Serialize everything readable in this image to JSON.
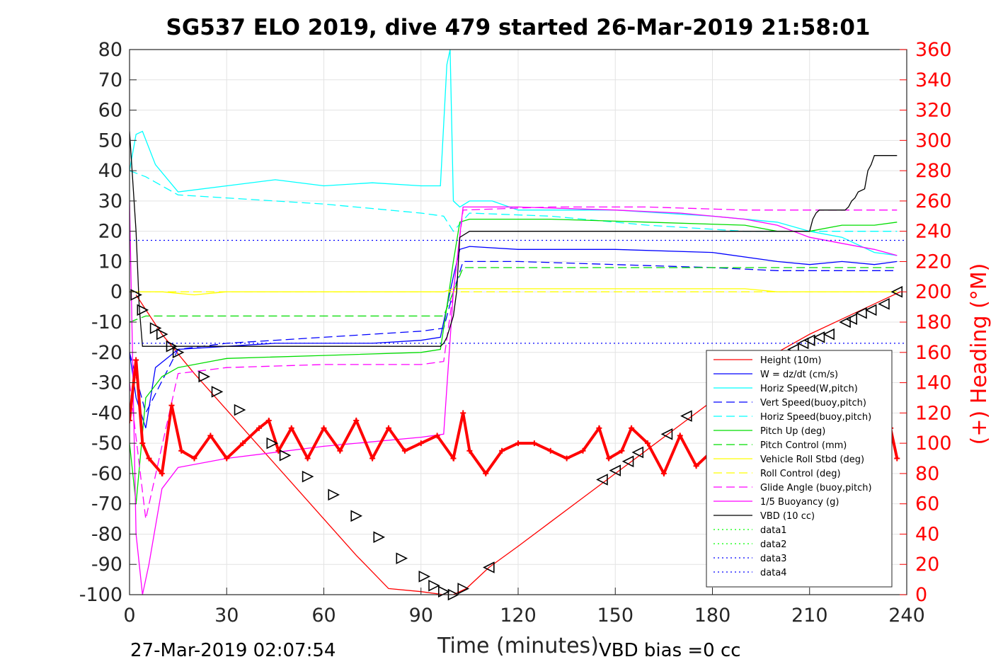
{
  "chart_data": {
    "type": "line",
    "title": "SG537 ELO 2019, dive 479 started 26-Mar-2019 21:58:01",
    "xlabel": "Time (minutes)",
    "ylabel": "",
    "y2label": "(+) Heading (°M)",
    "xlim": [
      0,
      240
    ],
    "ylim": [
      -100,
      80
    ],
    "y2lim": [
      0,
      360
    ],
    "x_ticks": [
      "0",
      "30",
      "60",
      "90",
      "120",
      "150",
      "180",
      "210",
      "240"
    ],
    "y_ticks": [
      "80",
      "70",
      "60",
      "50",
      "40",
      "30",
      "20",
      "10",
      "0",
      "-10",
      "-20",
      "-30",
      "-40",
      "-50",
      "-60",
      "-70",
      "-80",
      "-90",
      "-100"
    ],
    "y2_ticks": [
      "360",
      "340",
      "320",
      "300",
      "280",
      "260",
      "240",
      "220",
      "200",
      "180",
      "160",
      "140",
      "120",
      "100",
      "80",
      "60",
      "40",
      "20",
      "0"
    ],
    "grid": true,
    "legend_position": "lower-right",
    "series": [
      {
        "name": "Height (10m)",
        "color": "#ff0000",
        "style": "solid",
        "x": [
          2,
          10,
          20,
          30,
          40,
          50,
          60,
          70,
          80,
          90,
          97,
          100,
          104,
          111,
          120,
          130,
          140,
          150,
          160,
          170,
          180,
          190,
          200,
          210,
          220,
          230,
          238
        ],
        "y": [
          -1,
          -14,
          -27,
          -39,
          -51,
          -63,
          -75,
          -87,
          -98,
          -99,
          -100,
          -100,
          -98,
          -91,
          -84,
          -76,
          -68,
          -60,
          -52,
          -44,
          -36,
          -28,
          -20,
          -14,
          -9,
          -4,
          0
        ]
      },
      {
        "name": "W = dz/dt (cm/s)",
        "color": "#0000ff",
        "style": "solid",
        "x": [
          0,
          2,
          5,
          8,
          15,
          30,
          45,
          60,
          75,
          90,
          96,
          98,
          100,
          102,
          105,
          120,
          150,
          180,
          200,
          210,
          220,
          230,
          237
        ],
        "y": [
          -20,
          -35,
          -45,
          -25,
          -19,
          -18,
          -17,
          -17,
          -17,
          -16,
          -15,
          -5,
          5,
          14,
          15,
          14,
          14,
          13,
          10,
          9,
          10,
          9,
          10
        ]
      },
      {
        "name": "Horiz Speed(W,pitch)",
        "color": "#00ffff",
        "style": "solid",
        "x": [
          0,
          2,
          4,
          8,
          15,
          30,
          45,
          60,
          75,
          90,
          96,
          98,
          99,
          100,
          102,
          105,
          112,
          120,
          150,
          180,
          200,
          210,
          220,
          230,
          237
        ],
        "y": [
          40,
          52,
          53,
          42,
          33,
          35,
          37,
          35,
          36,
          35,
          35,
          75,
          80,
          30,
          28,
          30,
          30,
          27,
          27,
          25,
          23,
          20,
          18,
          13,
          12
        ]
      },
      {
        "name": "Vert Speed(buoy,pitch)",
        "color": "#0000ff",
        "style": "dashed",
        "x": [
          0,
          5,
          15,
          30,
          60,
          90,
          97,
          100,
          103,
          120,
          150,
          180,
          200,
          220,
          237
        ],
        "y": [
          -20,
          -40,
          -19,
          -17,
          -15,
          -13,
          -12,
          0,
          10,
          10,
          9,
          8,
          7,
          7,
          7
        ]
      },
      {
        "name": "Horiz Speed(buoy,pitch)",
        "color": "#00ffff",
        "style": "dashed",
        "x": [
          0,
          5,
          15,
          30,
          60,
          90,
          97,
          100,
          105,
          130,
          160,
          190,
          210,
          237
        ],
        "y": [
          40,
          38,
          32,
          31,
          29,
          26,
          25,
          20,
          26,
          25,
          22,
          20,
          20,
          20
        ]
      },
      {
        "name": "Pitch Up (deg)",
        "color": "#00dd00",
        "style": "solid",
        "x": [
          0,
          2,
          5,
          10,
          15,
          30,
          60,
          90,
          96,
          98,
          100,
          102,
          105,
          130,
          160,
          190,
          200,
          210,
          220,
          230,
          237
        ],
        "y": [
          -50,
          -70,
          -35,
          -28,
          -25,
          -22,
          -21,
          -20,
          -19,
          -5,
          10,
          23,
          24,
          24,
          23,
          22,
          20,
          20,
          22,
          22,
          23
        ]
      },
      {
        "name": "Pitch Control (mm)",
        "color": "#00dd00",
        "style": "dashed",
        "x": [
          0,
          5,
          10,
          30,
          60,
          90,
          97,
          100,
          103,
          130,
          160,
          190,
          237
        ],
        "y": [
          -10,
          -8,
          -8,
          -8,
          -8,
          -8,
          -8,
          0,
          8,
          8,
          8,
          8,
          8
        ]
      },
      {
        "name": "Vehicle Roll Stbd (deg)",
        "color": "#ffff00",
        "style": "solid",
        "x": [
          0,
          10,
          20,
          30,
          40,
          50,
          60,
          70,
          80,
          90,
          97,
          100,
          110,
          130,
          150,
          170,
          190,
          200,
          210,
          220,
          230,
          237
        ],
        "y": [
          0,
          0,
          -1,
          0,
          0,
          0,
          0,
          0,
          0,
          0,
          0,
          1,
          1,
          1,
          1,
          1,
          1,
          0,
          0,
          0,
          0,
          0
        ]
      },
      {
        "name": "Roll Control (deg)",
        "color": "#ffff00",
        "style": "dashed",
        "x": [
          0,
          30,
          60,
          90,
          97,
          100,
          104,
          120,
          150,
          180,
          210,
          237
        ],
        "y": [
          0,
          0,
          0,
          0,
          0,
          0,
          0,
          0,
          0,
          0,
          0,
          0
        ]
      },
      {
        "name": "Glide Angle (buoy,pitch)",
        "color": "#ff00ff",
        "style": "dashed",
        "x": [
          0,
          5,
          15,
          30,
          60,
          90,
          97,
          100,
          103,
          130,
          160,
          190,
          210,
          237
        ],
        "y": [
          -30,
          -75,
          -27,
          -25,
          -24,
          -24,
          -23,
          0,
          27,
          28,
          28,
          27,
          27,
          27
        ]
      },
      {
        "name": "1/5 Buoyancy (g)",
        "color": "#ff00ff",
        "style": "solid",
        "x": [
          0,
          2,
          4,
          6,
          10,
          15,
          30,
          60,
          90,
          97,
          100,
          103,
          120,
          150,
          170,
          190,
          200,
          210,
          220,
          230,
          237
        ],
        "y": [
          30,
          -80,
          -100,
          -90,
          -65,
          -58,
          -55,
          -51,
          -48,
          -47,
          0,
          28,
          28,
          27,
          26,
          24,
          22,
          18,
          16,
          14,
          12
        ]
      },
      {
        "name": "VBD (10 cc)",
        "color": "#000000",
        "style": "solid",
        "x": [
          0,
          2,
          3,
          4,
          96,
          97,
          98,
          100,
          101,
          102,
          105,
          210,
          211,
          212,
          213,
          221,
          222,
          223,
          224,
          225,
          227,
          228,
          229,
          230,
          237
        ],
        "y": [
          53,
          20,
          -5,
          -18,
          -18,
          -17,
          -15,
          -8,
          0,
          18,
          20,
          20,
          24,
          26,
          27,
          27,
          28,
          30,
          31,
          33,
          34,
          40,
          42,
          45,
          45
        ]
      },
      {
        "name": "data1",
        "color": "#00ff00",
        "style": "dotted",
        "x": [],
        "y": []
      },
      {
        "name": "data2",
        "color": "#00ff00",
        "style": "dotted",
        "x": [],
        "y": []
      },
      {
        "name": "data3",
        "color": "#0000ff",
        "style": "dotted",
        "x": [
          0,
          240
        ],
        "y": [
          17,
          17
        ]
      },
      {
        "name": "data4",
        "color": "#0000ff",
        "style": "dotted",
        "x": [
          0,
          240
        ],
        "y": [
          -17,
          -17
        ]
      }
    ],
    "heading": {
      "color": "#ff0000",
      "axis": "right",
      "x": [
        0,
        2,
        4,
        6,
        10,
        13,
        16,
        20,
        25,
        30,
        35,
        40,
        43,
        46,
        50,
        55,
        60,
        65,
        70,
        75,
        80,
        85,
        90,
        95,
        100,
        103,
        105,
        110,
        115,
        120,
        125,
        130,
        135,
        140,
        145,
        148,
        152,
        155,
        160,
        165,
        170,
        175,
        180,
        185,
        190,
        195,
        200,
        205,
        210,
        215,
        220,
        225,
        230,
        235,
        237
      ],
      "y": [
        115,
        155,
        100,
        90,
        80,
        125,
        95,
        90,
        105,
        90,
        100,
        110,
        115,
        95,
        110,
        90,
        110,
        95,
        115,
        90,
        110,
        95,
        100,
        105,
        90,
        120,
        95,
        80,
        95,
        100,
        100,
        95,
        90,
        95,
        110,
        90,
        95,
        110,
        100,
        80,
        105,
        85,
        95,
        90,
        100,
        85,
        100,
        90,
        95,
        100,
        90,
        105,
        95,
        110,
        90
      ]
    },
    "dive_markers": {
      "descent_x": [
        2,
        4,
        8,
        10,
        13,
        15,
        23,
        27,
        34,
        44,
        48,
        55,
        63,
        70,
        77,
        84,
        91,
        94,
        97,
        100,
        103
      ],
      "descent_y": [
        -1,
        -6,
        -12,
        -14,
        -18,
        -20,
        -28,
        -33,
        -39,
        -50,
        -54,
        -61,
        -67,
        -74,
        -81,
        -88,
        -94,
        -97,
        -99,
        -100,
        -98
      ],
      "ascent_x": [
        111,
        146,
        150,
        154,
        157,
        166,
        172,
        205,
        208,
        210,
        213,
        216,
        221,
        223,
        226,
        229,
        233,
        237
      ],
      "ascent_y": [
        -91,
        -62,
        -59,
        -56,
        -53,
        -47,
        -41,
        -19,
        -17,
        -16,
        -15,
        -14,
        -10,
        -9,
        -7,
        -6,
        -4,
        0
      ]
    }
  },
  "footer": {
    "timestamp": "27-Mar-2019 02:07:54",
    "vbd_bias": "VBD bias =0 cc"
  }
}
